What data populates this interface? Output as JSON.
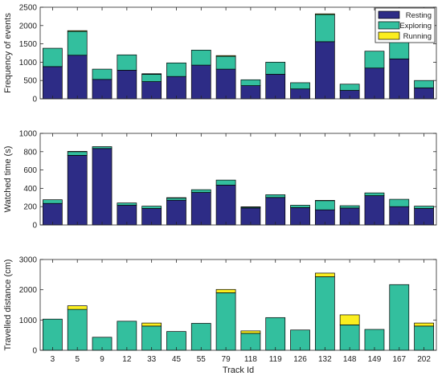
{
  "colors": {
    "resting": "#2d2c86",
    "exploring": "#33bf9e",
    "running": "#fbee1f",
    "axis": "#262626"
  },
  "chart_data": {
    "type": "bar",
    "stacked": true,
    "xlabel": "Track Id",
    "categories": [
      "3",
      "5",
      "9",
      "12",
      "33",
      "45",
      "55",
      "79",
      "118",
      "119",
      "126",
      "132",
      "148",
      "149",
      "167",
      "202"
    ],
    "legend": {
      "position": "top-right",
      "entries": [
        "Resting",
        "Exploring",
        "Running"
      ]
    },
    "panels": [
      {
        "ylabel": "Frequency of events",
        "ylim": [
          0,
          2500
        ],
        "yticks": [
          0,
          500,
          1000,
          1500,
          2000,
          2500
        ],
        "series": [
          {
            "name": "Resting",
            "values": [
              880,
              1190,
              530,
              780,
              470,
              610,
              920,
              810,
              360,
              670,
              270,
              1560,
              230,
              840,
              1090,
              300
            ]
          },
          {
            "name": "Exploring",
            "values": [
              500,
              650,
              280,
              420,
              200,
              370,
              410,
              350,
              160,
              330,
              170,
              740,
              170,
              460,
              480,
              200
            ]
          },
          {
            "name": "Running",
            "values": [
              0,
              20,
              0,
              0,
              15,
              0,
              0,
              20,
              0,
              0,
              0,
              20,
              0,
              0,
              0,
              0
            ]
          }
        ]
      },
      {
        "ylabel": "Watched time (s)",
        "ylim": [
          0,
          1000
        ],
        "yticks": [
          0,
          200,
          400,
          600,
          800,
          1000
        ],
        "series": [
          {
            "name": "Resting",
            "values": [
              235,
              760,
              835,
              215,
              180,
              270,
              355,
              435,
              185,
              300,
              190,
              165,
              185,
              320,
              200,
              180
            ]
          },
          {
            "name": "Exploring",
            "values": [
              40,
              40,
              20,
              25,
              25,
              25,
              30,
              55,
              10,
              30,
              25,
              100,
              25,
              30,
              80,
              25
            ]
          },
          {
            "name": "Running",
            "values": [
              0,
              3,
              0,
              0,
              0,
              3,
              0,
              0,
              3,
              0,
              0,
              3,
              0,
              0,
              0,
              0
            ]
          }
        ]
      },
      {
        "ylabel": "Travelled distance (cm)",
        "ylim": [
          0,
          3000
        ],
        "yticks": [
          0,
          1000,
          2000,
          3000
        ],
        "series": [
          {
            "name": "Resting",
            "values": [
              0,
              0,
              0,
              0,
              0,
              0,
              0,
              0,
              0,
              0,
              0,
              0,
              0,
              0,
              0,
              0
            ]
          },
          {
            "name": "Exploring",
            "values": [
              1030,
              1350,
              430,
              960,
              800,
              620,
              890,
              1900,
              560,
              1080,
              670,
              2430,
              840,
              690,
              2170,
              800
            ]
          },
          {
            "name": "Running",
            "values": [
              0,
              120,
              0,
              0,
              100,
              0,
              0,
              110,
              80,
              0,
              0,
              120,
              330,
              0,
              0,
              100
            ]
          }
        ]
      }
    ]
  }
}
